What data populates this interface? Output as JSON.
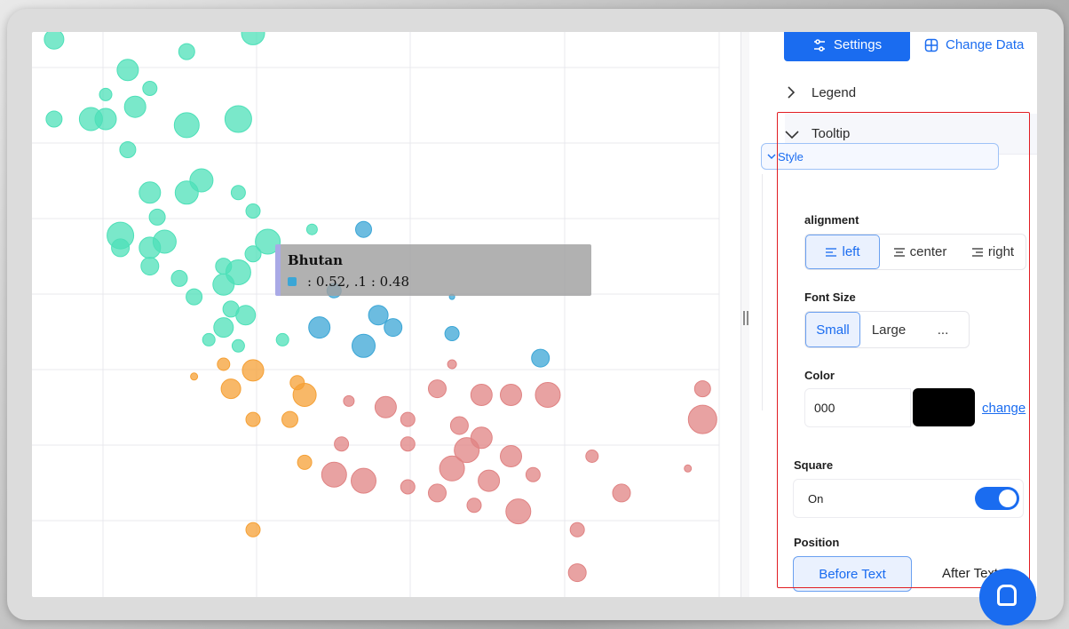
{
  "chart_data": {
    "type": "scatter",
    "title": "",
    "xlabel": "",
    "ylabel": "",
    "grid": true,
    "series": [
      {
        "color": "#4de0b8",
        "points": [
          {
            "x": 0.03,
            "y": 0.93,
            "r": 11
          },
          {
            "x": 0.3,
            "y": 0.94,
            "r": 13
          },
          {
            "x": 0.21,
            "y": 0.91,
            "r": 9
          },
          {
            "x": 0.13,
            "y": 0.88,
            "r": 12
          },
          {
            "x": 0.16,
            "y": 0.85,
            "r": 8
          },
          {
            "x": 0.1,
            "y": 0.84,
            "r": 7
          },
          {
            "x": 0.14,
            "y": 0.82,
            "r": 12
          },
          {
            "x": 0.03,
            "y": 0.8,
            "r": 9
          },
          {
            "x": 0.08,
            "y": 0.8,
            "r": 13
          },
          {
            "x": 0.1,
            "y": 0.8,
            "r": 12
          },
          {
            "x": 0.21,
            "y": 0.79,
            "r": 14
          },
          {
            "x": 0.28,
            "y": 0.8,
            "r": 15
          },
          {
            "x": 0.13,
            "y": 0.75,
            "r": 9
          },
          {
            "x": 0.23,
            "y": 0.7,
            "r": 13
          },
          {
            "x": 0.16,
            "y": 0.68,
            "r": 12
          },
          {
            "x": 0.21,
            "y": 0.68,
            "r": 13
          },
          {
            "x": 0.28,
            "y": 0.68,
            "r": 8
          },
          {
            "x": 0.17,
            "y": 0.64,
            "r": 9
          },
          {
            "x": 0.3,
            "y": 0.65,
            "r": 8
          },
          {
            "x": 0.12,
            "y": 0.61,
            "r": 15
          },
          {
            "x": 0.18,
            "y": 0.6,
            "r": 13
          },
          {
            "x": 0.16,
            "y": 0.59,
            "r": 12
          },
          {
            "x": 0.32,
            "y": 0.6,
            "r": 14
          },
          {
            "x": 0.3,
            "y": 0.58,
            "r": 9
          },
          {
            "x": 0.12,
            "y": 0.59,
            "r": 10
          },
          {
            "x": 0.26,
            "y": 0.56,
            "r": 9
          },
          {
            "x": 0.28,
            "y": 0.55,
            "r": 14
          },
          {
            "x": 0.16,
            "y": 0.56,
            "r": 10
          },
          {
            "x": 0.2,
            "y": 0.54,
            "r": 9
          },
          {
            "x": 0.26,
            "y": 0.53,
            "r": 12
          },
          {
            "x": 0.22,
            "y": 0.51,
            "r": 9
          },
          {
            "x": 0.27,
            "y": 0.49,
            "r": 9
          },
          {
            "x": 0.29,
            "y": 0.48,
            "r": 11
          },
          {
            "x": 0.26,
            "y": 0.46,
            "r": 11
          },
          {
            "x": 0.24,
            "y": 0.44,
            "r": 7
          },
          {
            "x": 0.34,
            "y": 0.44,
            "r": 7
          },
          {
            "x": 0.28,
            "y": 0.43,
            "r": 7
          },
          {
            "x": 0.38,
            "y": 0.62,
            "r": 6
          }
        ]
      },
      {
        "color": "#3ba6d6",
        "points": [
          {
            "x": 0.45,
            "y": 0.62,
            "r": 9
          },
          {
            "x": 0.41,
            "y": 0.52,
            "r": 8
          },
          {
            "x": 0.47,
            "y": 0.48,
            "r": 11
          },
          {
            "x": 0.39,
            "y": 0.46,
            "r": 12
          },
          {
            "x": 0.49,
            "y": 0.46,
            "r": 10
          },
          {
            "x": 0.45,
            "y": 0.43,
            "r": 13
          },
          {
            "x": 0.57,
            "y": 0.45,
            "r": 8
          },
          {
            "x": 0.69,
            "y": 0.41,
            "r": 10
          },
          {
            "x": 0.57,
            "y": 0.51,
            "r": 3
          }
        ]
      },
      {
        "color": "#f5a035",
        "points": [
          {
            "x": 0.3,
            "y": 0.39,
            "r": 12
          },
          {
            "x": 0.27,
            "y": 0.36,
            "r": 11
          },
          {
            "x": 0.37,
            "y": 0.35,
            "r": 13
          },
          {
            "x": 0.36,
            "y": 0.37,
            "r": 8
          },
          {
            "x": 0.3,
            "y": 0.31,
            "r": 8
          },
          {
            "x": 0.35,
            "y": 0.31,
            "r": 9
          },
          {
            "x": 0.37,
            "y": 0.24,
            "r": 8
          },
          {
            "x": 0.3,
            "y": 0.13,
            "r": 8
          },
          {
            "x": 0.22,
            "y": 0.38,
            "r": 4
          },
          {
            "x": 0.26,
            "y": 0.4,
            "r": 7
          }
        ]
      },
      {
        "color": "#e08383",
        "points": [
          {
            "x": 0.55,
            "y": 0.36,
            "r": 10
          },
          {
            "x": 0.61,
            "y": 0.35,
            "r": 12
          },
          {
            "x": 0.65,
            "y": 0.35,
            "r": 12
          },
          {
            "x": 0.7,
            "y": 0.35,
            "r": 14
          },
          {
            "x": 0.48,
            "y": 0.33,
            "r": 12
          },
          {
            "x": 0.51,
            "y": 0.31,
            "r": 8
          },
          {
            "x": 0.58,
            "y": 0.3,
            "r": 10
          },
          {
            "x": 0.61,
            "y": 0.28,
            "r": 12
          },
          {
            "x": 0.59,
            "y": 0.26,
            "r": 14
          },
          {
            "x": 0.42,
            "y": 0.27,
            "r": 8
          },
          {
            "x": 0.51,
            "y": 0.27,
            "r": 8
          },
          {
            "x": 0.65,
            "y": 0.25,
            "r": 12
          },
          {
            "x": 0.57,
            "y": 0.23,
            "r": 14
          },
          {
            "x": 0.62,
            "y": 0.21,
            "r": 12
          },
          {
            "x": 0.68,
            "y": 0.22,
            "r": 8
          },
          {
            "x": 0.41,
            "y": 0.22,
            "r": 14
          },
          {
            "x": 0.45,
            "y": 0.21,
            "r": 14
          },
          {
            "x": 0.51,
            "y": 0.2,
            "r": 8
          },
          {
            "x": 0.55,
            "y": 0.19,
            "r": 10
          },
          {
            "x": 0.6,
            "y": 0.17,
            "r": 8
          },
          {
            "x": 0.66,
            "y": 0.16,
            "r": 14
          },
          {
            "x": 0.74,
            "y": 0.13,
            "r": 8
          },
          {
            "x": 0.74,
            "y": 0.06,
            "r": 10
          },
          {
            "x": 0.8,
            "y": 0.19,
            "r": 10
          },
          {
            "x": 0.91,
            "y": 0.36,
            "r": 9
          },
          {
            "x": 0.91,
            "y": 0.31,
            "r": 16
          },
          {
            "x": 0.76,
            "y": 0.25,
            "r": 7
          },
          {
            "x": 0.43,
            "y": 0.34,
            "r": 6
          },
          {
            "x": 0.57,
            "y": 0.4,
            "r": 5
          },
          {
            "x": 0.89,
            "y": 0.23,
            "r": 4
          }
        ]
      }
    ]
  },
  "tooltip_popup": {
    "title": "Bhutan",
    "value_text": ": 0.52,  .1 : 0.48",
    "marker_color": "#3ba6d6"
  },
  "panel": {
    "settings_label": "Settings",
    "change_data_label": "Change Data",
    "legend_label": "Legend",
    "tooltip_label": "Tooltip",
    "style_label": "Style",
    "alignment_label": "alignment",
    "alignment_options": [
      "left",
      "center",
      "right"
    ],
    "font_size_label": "Font Size",
    "font_size_options": [
      "Small",
      "Large",
      "..."
    ],
    "color_label": "Color",
    "color_value": "000",
    "color_swatch": "#000000",
    "change_label": "change",
    "square_label": "Square",
    "square_state": "On",
    "position_label": "Position",
    "position_options": [
      "Before Text",
      "After Text"
    ]
  },
  "colors": {
    "accent": "#1a6cf0",
    "highlight": "#e11d23"
  }
}
